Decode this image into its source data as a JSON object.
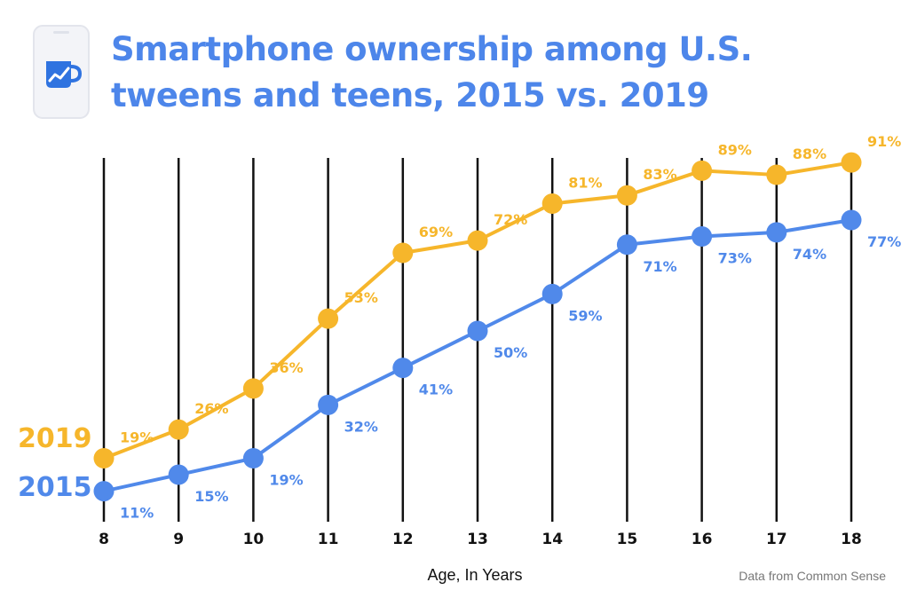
{
  "title_lines": [
    "Smartphone ownership among U.S.",
    "tweens and teens, 2015 vs. 2019"
  ],
  "xlabel": "Age, In Years",
  "source": "Data from Common Sense",
  "chart_data": {
    "type": "line",
    "title": "Smartphone ownership among U.S. tweens and teens, 2015 vs. 2019",
    "xlabel": "Age, In Years",
    "ylabel": "",
    "x": [
      8,
      9,
      10,
      11,
      12,
      13,
      14,
      15,
      16,
      17,
      18
    ],
    "x_labels": [
      "8",
      "9",
      "10",
      "11",
      "12",
      "13",
      "14",
      "15",
      "16",
      "17",
      "18"
    ],
    "ylim": [
      0,
      100
    ],
    "grid": "vertical",
    "series": [
      {
        "name": "2019",
        "color": "#f6b62b",
        "values": [
          19,
          26,
          36,
          53,
          69,
          72,
          81,
          83,
          89,
          88,
          91
        ],
        "labels": [
          "19%",
          "26%",
          "36%",
          "53%",
          "69%",
          "72%",
          "81%",
          "83%",
          "89%",
          "88%",
          "91%"
        ],
        "label_position": "above"
      },
      {
        "name": "2015",
        "color": "#5089ea",
        "values": [
          11,
          15,
          19,
          32,
          41,
          50,
          59,
          71,
          73,
          74,
          77
        ],
        "labels": [
          "11%",
          "15%",
          "19%",
          "32%",
          "41%",
          "50%",
          "59%",
          "71%",
          "73%",
          "74%",
          "77%"
        ],
        "label_position": "below"
      }
    ]
  },
  "icon": "phone-mug-chart-icon",
  "colors": {
    "accent": "#4d86ea",
    "phone_frame": "#eef0f5",
    "mug": "#2f73e0"
  }
}
